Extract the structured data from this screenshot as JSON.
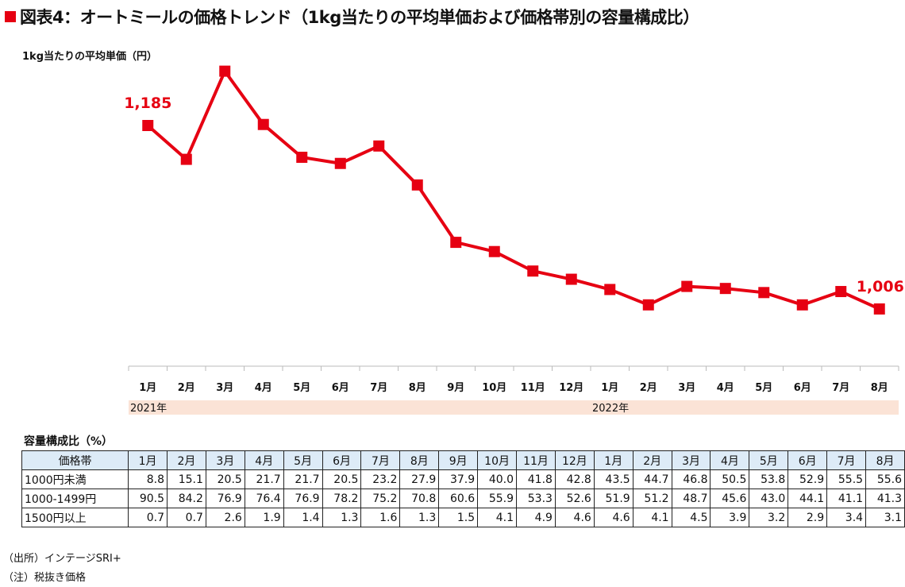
{
  "title": "図表4：オートミールの価格トレンド（1kg当たりの平均単価および価格帯別の容量構成比）",
  "chart_data": {
    "type": "line",
    "ylabel": "1kg当たりの平均単価（円）",
    "categories": [
      "1月",
      "2月",
      "3月",
      "4月",
      "5月",
      "6月",
      "7月",
      "8月",
      "9月",
      "10月",
      "11月",
      "12月",
      "1月",
      "2月",
      "3月",
      "4月",
      "5月",
      "6月",
      "7月",
      "8月"
    ],
    "years": [
      {
        "label": "2021年",
        "months": 12
      },
      {
        "label": "2022年",
        "months": 8
      }
    ],
    "series": [
      {
        "name": "1kg当たりの平均単価",
        "color": "#e60012",
        "values": [
          1185,
          1152,
          1238,
          1186,
          1154,
          1148,
          1165,
          1127,
          1071,
          1062,
          1043,
          1035,
          1025,
          1010,
          1028,
          1026,
          1022,
          1010,
          1023,
          1006
        ]
      }
    ],
    "data_labels": [
      {
        "index": 0,
        "text": "1,185"
      },
      {
        "index": 19,
        "text": "1,006"
      }
    ],
    "ylim": [
      900,
      1250
    ],
    "grid": false
  },
  "table": {
    "caption": "容量構成比（%）",
    "header": "価格帯",
    "rows": [
      {
        "label": "1000円未満",
        "values": [
          "8.8",
          "15.1",
          "20.5",
          "21.7",
          "21.7",
          "20.5",
          "23.2",
          "27.9",
          "37.9",
          "40.0",
          "41.8",
          "42.8",
          "43.5",
          "44.7",
          "46.8",
          "50.5",
          "53.8",
          "52.9",
          "55.5",
          "55.6"
        ]
      },
      {
        "label": "1000-1499円",
        "values": [
          "90.5",
          "84.2",
          "76.9",
          "76.4",
          "76.9",
          "78.2",
          "75.2",
          "70.8",
          "60.6",
          "55.9",
          "53.3",
          "52.6",
          "51.9",
          "51.2",
          "48.7",
          "45.6",
          "43.0",
          "44.1",
          "41.1",
          "41.3"
        ]
      },
      {
        "label": "1500円以上",
        "values": [
          "0.7",
          "0.7",
          "2.6",
          "1.9",
          "1.4",
          "1.3",
          "1.6",
          "1.3",
          "1.5",
          "4.1",
          "4.9",
          "4.6",
          "4.6",
          "4.1",
          "4.5",
          "3.9",
          "3.2",
          "2.9",
          "3.4",
          "3.1"
        ]
      }
    ]
  },
  "notes": [
    "（出所）インテージSRI+",
    "（注）税抜き価格"
  ]
}
